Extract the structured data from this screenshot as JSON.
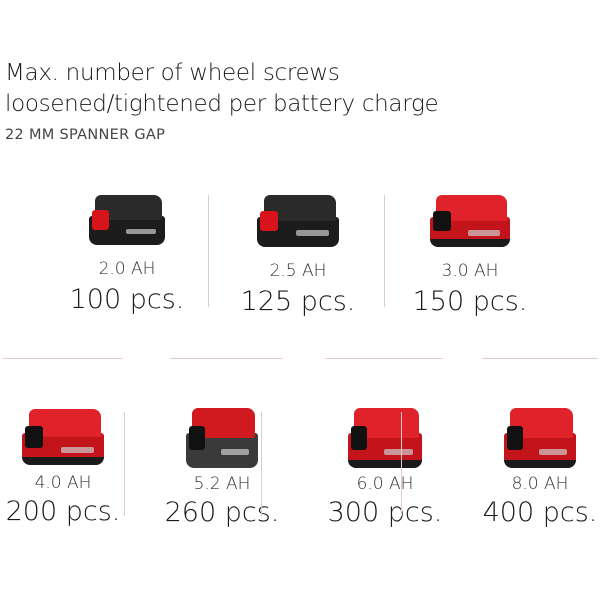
{
  "header": {
    "title_line1": "Max. number of wheel screws",
    "title_line2": "loosened/tightened per battery charge",
    "subtitle": "22 MM SPANNER GAP"
  },
  "colors": {
    "accent": "#d7141c",
    "divider": "#e3c9cb"
  },
  "batteries": [
    {
      "capacity": "2.0 AH",
      "count": "100 pcs.",
      "style": "dark"
    },
    {
      "capacity": "2.5 AH",
      "count": "125 pcs.",
      "style": "dark"
    },
    {
      "capacity": "3.0 AH",
      "count": "150 pcs.",
      "style": "red"
    },
    {
      "capacity": "4.0 AH",
      "count": "200 pcs.",
      "style": "red"
    },
    {
      "capacity": "5.2 AH",
      "count": "260 pcs.",
      "style": "grey"
    },
    {
      "capacity": "6.0 AH",
      "count": "300 pcs.",
      "style": "red"
    },
    {
      "capacity": "8.0 AH",
      "count": "400 pcs.",
      "style": "red"
    }
  ]
}
